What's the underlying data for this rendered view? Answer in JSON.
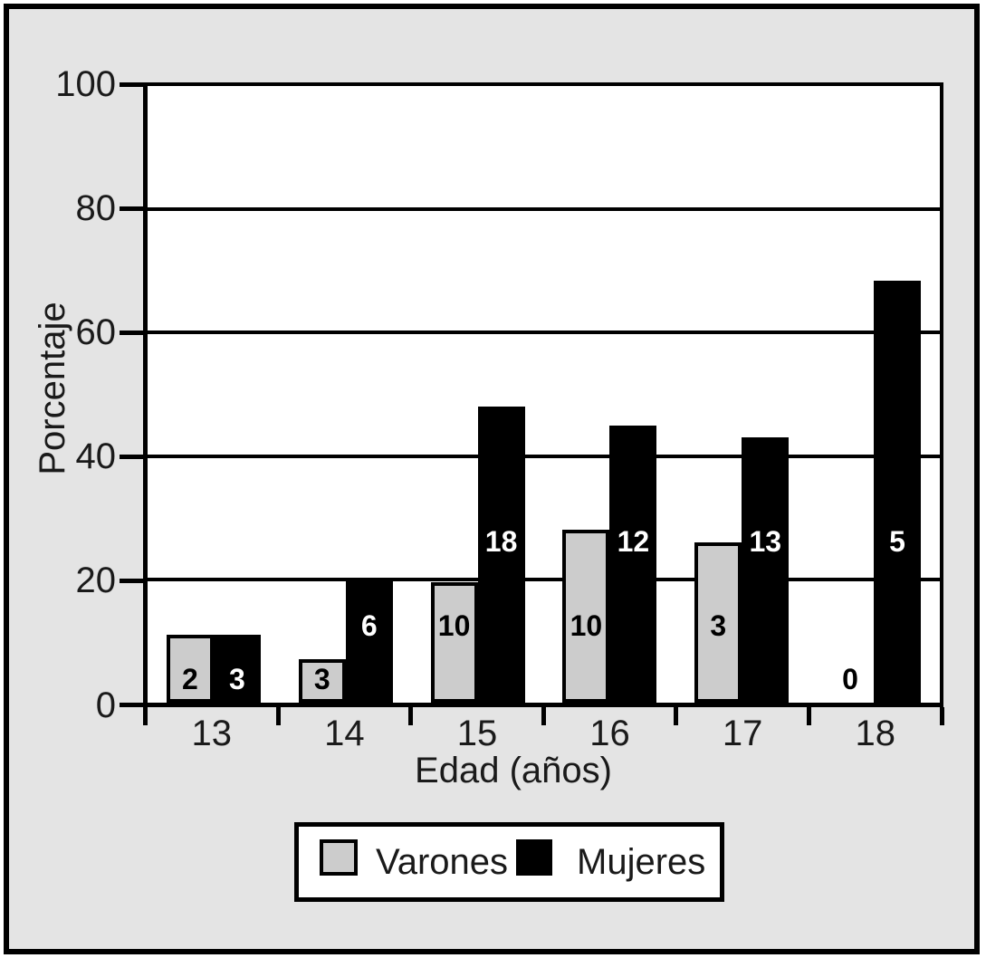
{
  "chart_data": {
    "type": "bar",
    "title": "",
    "xlabel": "Edad (años)",
    "ylabel": "Porcentaje",
    "categories": [
      "13",
      "14",
      "15",
      "16",
      "17",
      "18"
    ],
    "y_ticks": [
      100,
      80,
      60,
      40,
      20,
      0
    ],
    "ylim": [
      0,
      100
    ],
    "grid": true,
    "legend_position": "bottom-center",
    "series": [
      {
        "name": "Varones",
        "color": "#cccccc",
        "label_color": "#000000",
        "percent_heights": [
          11,
          7,
          19.5,
          28,
          26,
          0
        ],
        "count_labels": [
          "2",
          "3",
          "10",
          "10",
          "3",
          "0"
        ]
      },
      {
        "name": "Mujeres",
        "color": "#000000",
        "label_color": "#ffffff",
        "percent_heights": [
          11,
          20,
          48,
          45,
          43,
          68.5
        ],
        "count_labels": [
          "3",
          "6",
          "18",
          "12",
          "13",
          "5"
        ]
      }
    ]
  },
  "colors": {
    "page_background": "#ffffff",
    "figure_background": "#e4e4e4",
    "plot_background": "#ffffff",
    "axis_line": "#000000",
    "text": "#1a1a1a"
  }
}
